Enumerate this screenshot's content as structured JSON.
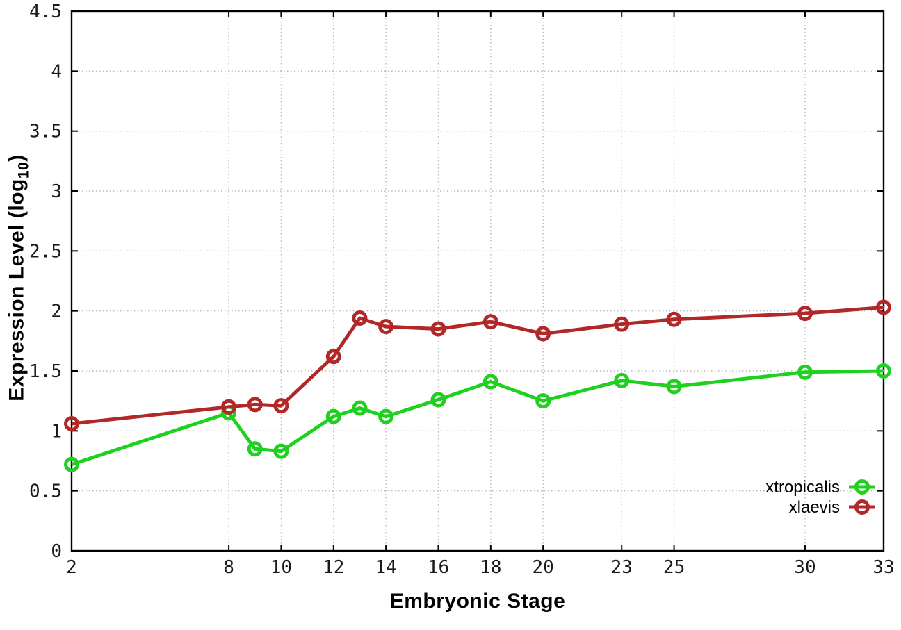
{
  "chart_data": {
    "type": "line",
    "title": "",
    "xlabel": "Embryonic Stage",
    "ylabel_main": "Expression Level (log",
    "ylabel_sub": "10",
    "ylabel_close": ")",
    "xlim": [
      2,
      33
    ],
    "ylim": [
      0,
      4.5
    ],
    "grid": true,
    "legend_position": "bottom-right inside plot",
    "x_tick_values": [
      2,
      8,
      10,
      12,
      14,
      16,
      18,
      20,
      23,
      25,
      30,
      33
    ],
    "x_tick_labels": [
      "2",
      "8",
      "10",
      "12",
      "14",
      "16",
      "18",
      "20",
      "23",
      "25",
      "30",
      "33"
    ],
    "y_tick_values": [
      0,
      0.5,
      1,
      1.5,
      2,
      2.5,
      3,
      3.5,
      4,
      4.5
    ],
    "y_tick_labels": [
      "0",
      "0.5",
      "1",
      "1.5",
      "2",
      "2.5",
      "3",
      "3.5",
      "4",
      "4.5"
    ],
    "x": [
      2,
      8,
      9,
      10,
      12,
      13,
      14,
      16,
      18,
      20,
      23,
      25,
      30,
      33
    ],
    "series": [
      {
        "name": "xtropicalis",
        "color": "#1fd11f",
        "marker": "open-circle",
        "values": [
          0.72,
          1.15,
          0.85,
          0.83,
          1.12,
          1.19,
          1.12,
          1.26,
          1.41,
          1.25,
          1.42,
          1.37,
          1.49,
          1.5
        ]
      },
      {
        "name": "xlaevis",
        "color": "#b22828",
        "marker": "open-circle",
        "values": [
          1.06,
          1.2,
          1.22,
          1.21,
          1.62,
          1.94,
          1.87,
          1.85,
          1.91,
          1.81,
          1.89,
          1.93,
          1.98,
          2.03
        ]
      }
    ]
  },
  "colors": {
    "background": "#ffffff",
    "axis": "#000000",
    "grid": "#b9b9b9",
    "tick_text": "#1a1a1a"
  }
}
